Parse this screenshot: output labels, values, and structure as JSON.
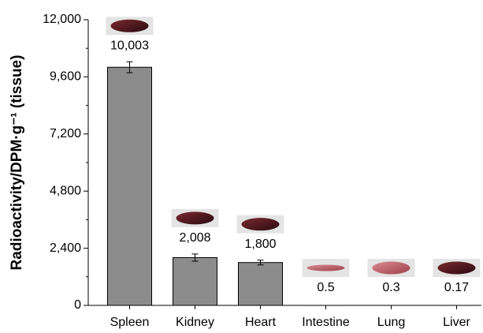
{
  "chart_data": {
    "type": "bar",
    "y_label": "Radioactivity/DPM·g⁻¹ (tissue)",
    "categories": [
      "Spleen",
      "Kidney",
      "Heart",
      "Intestine",
      "Lung",
      "Liver"
    ],
    "values": [
      10003,
      2008,
      1800,
      0.5,
      0.3,
      0.17
    ],
    "value_labels": [
      "10,003",
      "2,008",
      "1,800",
      "0.5",
      "0.3",
      "0.17"
    ],
    "errors": [
      230,
      150,
      100,
      null,
      null,
      null
    ],
    "color": "#8c8c8c",
    "ylim": [
      0,
      12000
    ],
    "yticks": [
      0,
      {
        "value": 2400,
        "label": "2,400"
      },
      {
        "value": 4800,
        "label": "4,800"
      },
      {
        "value": 7200,
        "label": "7,200"
      },
      {
        "value": 9600,
        "label": "9,600"
      },
      {
        "value": 12000,
        "label": "12,000"
      }
    ],
    "minor_yticks": [
      1200,
      3600,
      6000,
      8400,
      10800
    ]
  }
}
